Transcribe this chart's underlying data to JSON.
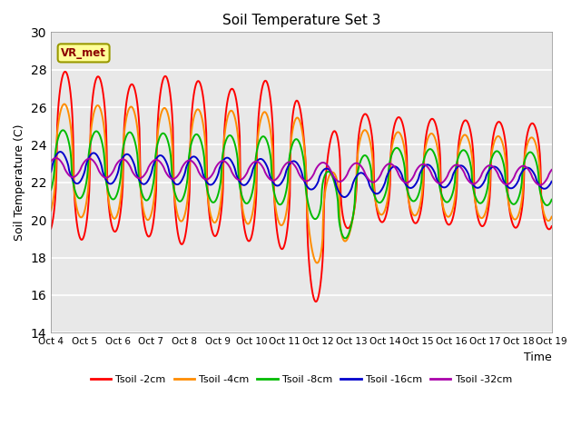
{
  "title": "Soil Temperature Set 3",
  "xlabel": "Time",
  "ylabel": "Soil Temperature (C)",
  "ylim": [
    14,
    30
  ],
  "xlim_start": 0,
  "xlim_end": 15,
  "x_tick_labels": [
    "Oct 4",
    "Oct 5",
    "Oct 6",
    "Oct 7",
    "Oct 8",
    "Oct 9",
    "Oct 10",
    "Oct 11",
    "Oct 12",
    "Oct 13",
    "Oct 14",
    "Oct 15",
    "Oct 16",
    "Oct 17",
    "Oct 18",
    "Oct 19"
  ],
  "yticks": [
    14,
    16,
    18,
    20,
    22,
    24,
    26,
    28,
    30
  ],
  "color_2cm": "#FF0000",
  "color_4cm": "#FF8C00",
  "color_8cm": "#00BB00",
  "color_16cm": "#0000CC",
  "color_32cm": "#AA00AA",
  "legend_labels": [
    "Tsoil -2cm",
    "Tsoil -4cm",
    "Tsoil -8cm",
    "Tsoil -16cm",
    "Tsoil -32cm"
  ],
  "annotation_text": "VR_met",
  "background_color": "#E8E8E8",
  "grid_color": "#FFFFFF",
  "linewidth": 1.4
}
